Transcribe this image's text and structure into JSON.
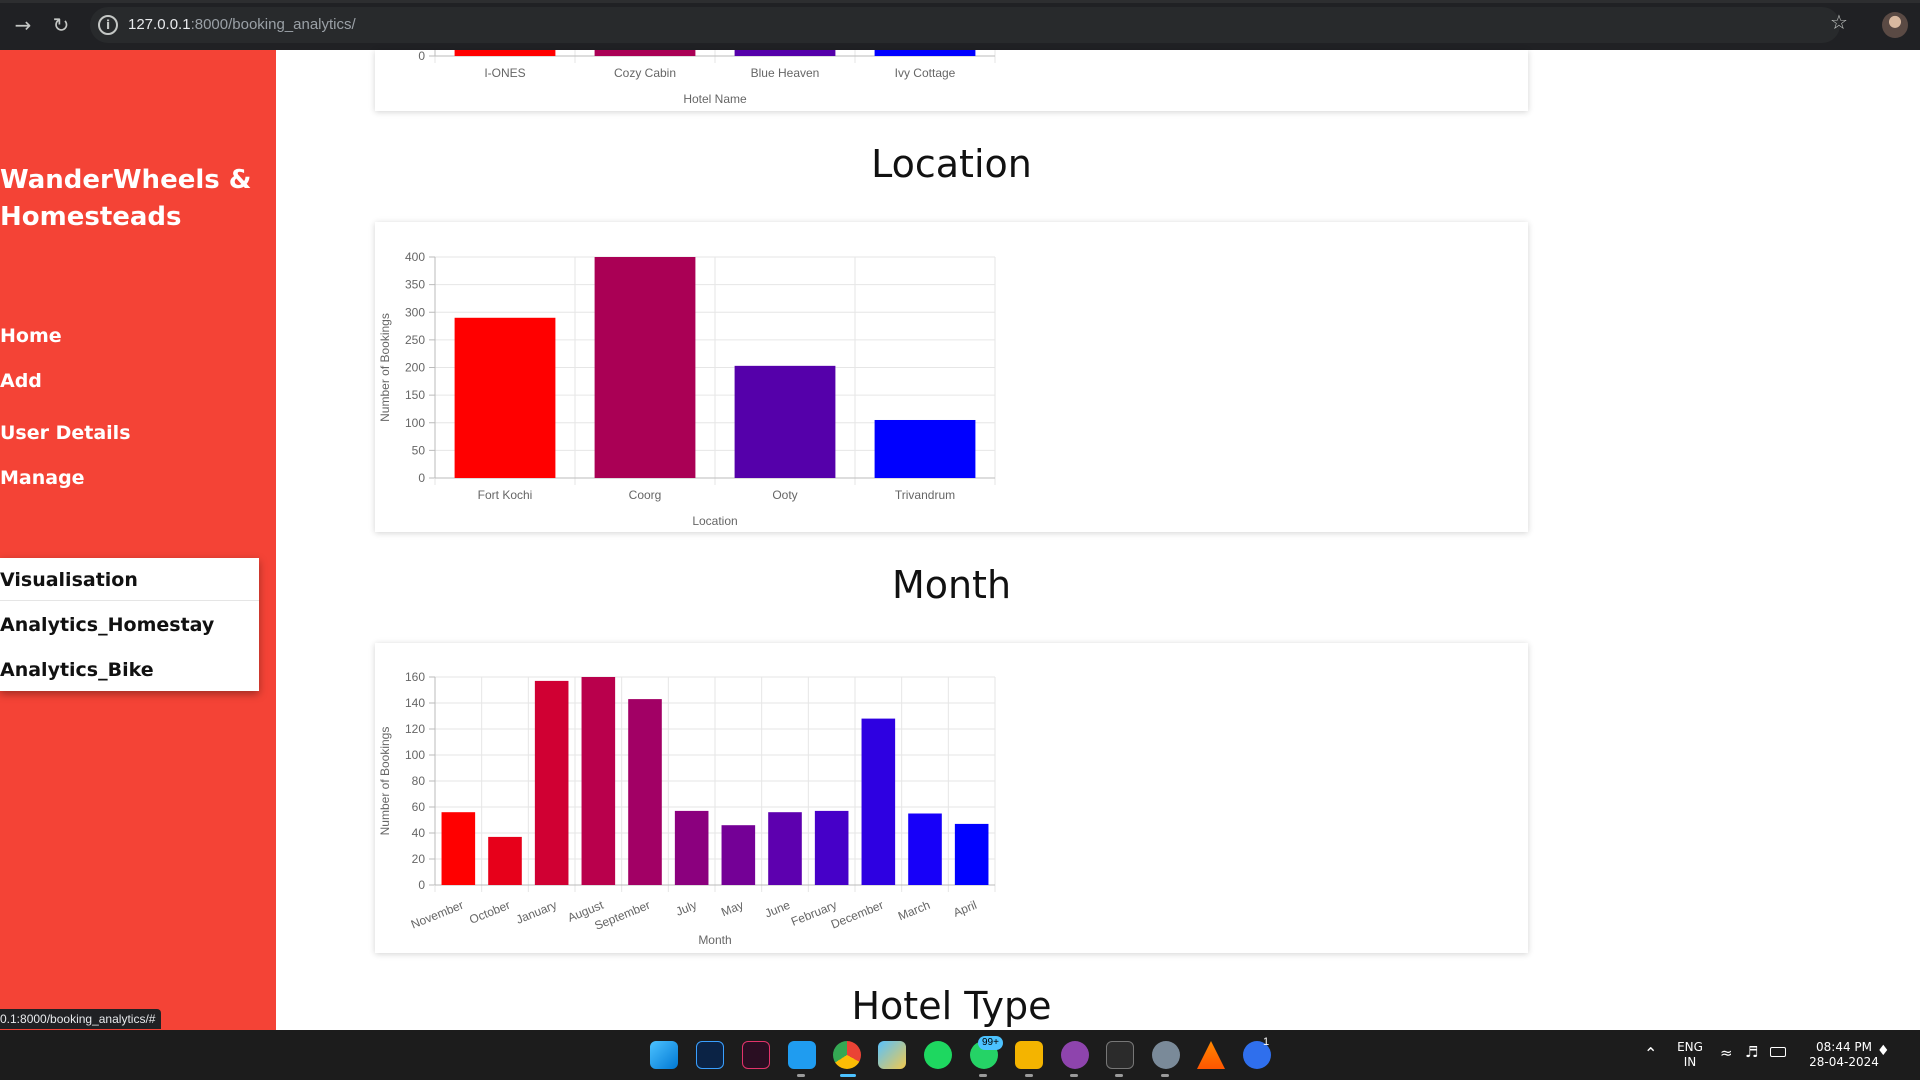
{
  "browser": {
    "url_host": "127.0.0.1",
    "url_rest": ":8000/booking_analytics/",
    "status_link": "0.1:8000/booking_analytics/#"
  },
  "sidebar": {
    "brand": "WanderWheels & Homesteads",
    "nav": [
      "Home",
      "Add",
      "User Details",
      "Manage"
    ],
    "dropdown": [
      "Visualisation",
      "Analytics_Homestay",
      "Analytics_Bike"
    ],
    "color": "#f44336"
  },
  "sections": {
    "location": "Location",
    "month": "Month",
    "hotel_type": "Hotel Type"
  },
  "chart_data": [
    {
      "type": "bar",
      "categories": [
        "I-ONES",
        "Cozy Cabin",
        "Blue Heaven",
        "Ivy Cottage"
      ],
      "xlabel": "Hotel Name",
      "ytick_visible": "0",
      "colors": [
        "#ff0000",
        "#aa0055",
        "#5500aa",
        "#0000ff"
      ]
    },
    {
      "type": "bar",
      "categories": [
        "Fort Kochi",
        "Coorg",
        "Ooty",
        "Trivandrum"
      ],
      "values": [
        290,
        400,
        203,
        105
      ],
      "xlabel": "Location",
      "ylabel": "Number of Bookings",
      "ylim": [
        0,
        400
      ],
      "yticks": [
        0,
        50,
        100,
        150,
        200,
        250,
        300,
        350,
        400
      ],
      "grid": true,
      "colors": [
        "#ff0000",
        "#aa0055",
        "#5500aa",
        "#0000ff"
      ]
    },
    {
      "type": "bar",
      "categories": [
        "November",
        "October",
        "January",
        "August",
        "September",
        "July",
        "May",
        "June",
        "February",
        "December",
        "March",
        "April"
      ],
      "values": [
        56,
        37,
        157,
        160,
        143,
        57,
        46,
        56,
        57,
        128,
        55,
        47
      ],
      "xlabel": "Month",
      "ylabel": "Number of Bookings",
      "ylim": [
        0,
        160
      ],
      "yticks": [
        0,
        20,
        40,
        60,
        80,
        100,
        120,
        140,
        160
      ],
      "grid": true,
      "colors": [
        "#ff0000",
        "#e7001a",
        "#d00033",
        "#b9004c",
        "#a20065",
        "#8b007e",
        "#740096",
        "#5d00af",
        "#4600c8",
        "#2e00e1",
        "#1700f9",
        "#0000ff"
      ]
    }
  ],
  "taskbar": {
    "badge": "99+",
    "lang_top": "ENG",
    "lang_bottom": "IN",
    "time": "08:44 PM",
    "date": "28-04-2024",
    "notif": "1"
  }
}
